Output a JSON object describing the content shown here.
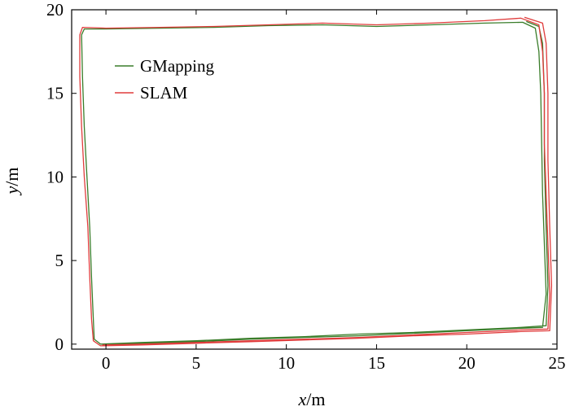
{
  "chart_data": {
    "type": "line",
    "xlabel": "x/m",
    "ylabel": "y/m",
    "xlim": [
      -1.9,
      25
    ],
    "ylim": [
      -0.3,
      20
    ],
    "xticks": [
      0,
      5,
      10,
      15,
      20,
      25
    ],
    "yticks": [
      0,
      5,
      10,
      15,
      20
    ],
    "grid": false,
    "legend_position": "top-left",
    "series": [
      {
        "name": "GMapping",
        "color": "#3a7d2a",
        "points": [
          [
            -0.2,
            0.0
          ],
          [
            2,
            0.05
          ],
          [
            5,
            0.15
          ],
          [
            8,
            0.3
          ],
          [
            11,
            0.4
          ],
          [
            14,
            0.5
          ],
          [
            17,
            0.65
          ],
          [
            20,
            0.8
          ],
          [
            23,
            0.95
          ],
          [
            24.2,
            1.0
          ],
          [
            24.4,
            3
          ],
          [
            24.3,
            6
          ],
          [
            24.2,
            9
          ],
          [
            24.15,
            12
          ],
          [
            24.1,
            15
          ],
          [
            24.0,
            17.5
          ],
          [
            23.8,
            18.9
          ],
          [
            23.1,
            19.25
          ],
          [
            21,
            19.2
          ],
          [
            18,
            19.1
          ],
          [
            15,
            19.0
          ],
          [
            12,
            19.1
          ],
          [
            9,
            19.05
          ],
          [
            6,
            18.95
          ],
          [
            3,
            18.9
          ],
          [
            0,
            18.85
          ],
          [
            -1.2,
            18.85
          ],
          [
            -1.35,
            18.5
          ],
          [
            -1.3,
            16
          ],
          [
            -1.2,
            13
          ],
          [
            -1.05,
            10
          ],
          [
            -0.9,
            7
          ],
          [
            -0.8,
            4
          ],
          [
            -0.7,
            1.5
          ],
          [
            -0.65,
            0.3
          ],
          [
            -0.3,
            0.0
          ],
          [
            2,
            0.1
          ],
          [
            5,
            0.2
          ],
          [
            8,
            0.35
          ],
          [
            11,
            0.45
          ],
          [
            14,
            0.6
          ],
          [
            17,
            0.7
          ],
          [
            20,
            0.85
          ],
          [
            23,
            1.0
          ],
          [
            24.4,
            1.1
          ],
          [
            24.5,
            3.5
          ],
          [
            24.4,
            7
          ],
          [
            24.3,
            11
          ],
          [
            24.3,
            15
          ],
          [
            24.2,
            18
          ],
          [
            24.0,
            19.0
          ],
          [
            23.3,
            19.3
          ]
        ]
      },
      {
        "name": "SLAM",
        "color": "#e03c3c",
        "points": [
          [
            -0.2,
            -0.05
          ],
          [
            2,
            0.0
          ],
          [
            5,
            0.1
          ],
          [
            8,
            0.2
          ],
          [
            11,
            0.3
          ],
          [
            14,
            0.4
          ],
          [
            17,
            0.55
          ],
          [
            20,
            0.7
          ],
          [
            23,
            0.85
          ],
          [
            24.5,
            0.9
          ],
          [
            24.6,
            3
          ],
          [
            24.5,
            6
          ],
          [
            24.4,
            9
          ],
          [
            24.3,
            12
          ],
          [
            24.3,
            15
          ],
          [
            24.2,
            17.5
          ],
          [
            24.0,
            19.1
          ],
          [
            23.0,
            19.5
          ],
          [
            21,
            19.35
          ],
          [
            18,
            19.2
          ],
          [
            15,
            19.1
          ],
          [
            12,
            19.2
          ],
          [
            9,
            19.1
          ],
          [
            6,
            19.0
          ],
          [
            3,
            18.95
          ],
          [
            0,
            18.9
          ],
          [
            -1.3,
            18.95
          ],
          [
            -1.45,
            18.5
          ],
          [
            -1.45,
            16
          ],
          [
            -1.35,
            13
          ],
          [
            -1.2,
            10
          ],
          [
            -1.0,
            7
          ],
          [
            -0.9,
            4
          ],
          [
            -0.8,
            1.5
          ],
          [
            -0.7,
            0.2
          ],
          [
            -0.3,
            -0.1
          ],
          [
            2,
            -0.05
          ],
          [
            5,
            0.05
          ],
          [
            8,
            0.15
          ],
          [
            11,
            0.25
          ],
          [
            14,
            0.35
          ],
          [
            17,
            0.5
          ],
          [
            20,
            0.6
          ],
          [
            23,
            0.75
          ],
          [
            24.6,
            0.8
          ],
          [
            24.7,
            3.5
          ],
          [
            24.6,
            7
          ],
          [
            24.5,
            11
          ],
          [
            24.5,
            15
          ],
          [
            24.4,
            18
          ],
          [
            24.2,
            19.2
          ],
          [
            23.2,
            19.55
          ]
        ]
      }
    ]
  }
}
